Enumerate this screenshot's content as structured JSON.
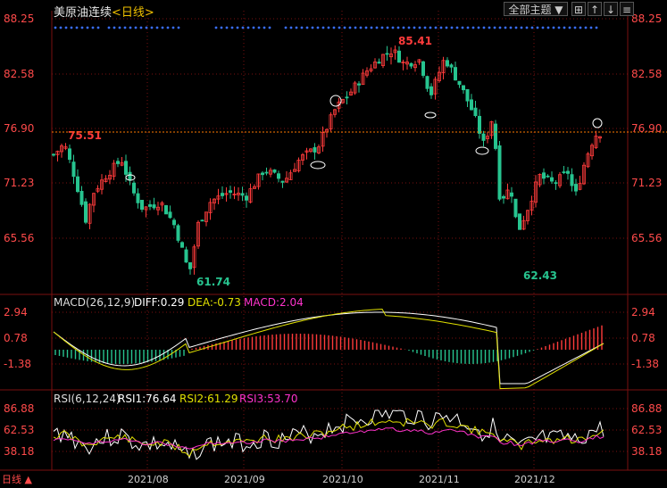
{
  "header": {
    "title": "美原油连续",
    "timeframe": "<日线>",
    "dropdown_label": "全部主题",
    "icon_buttons": [
      "expand-icon",
      "zoom-in-icon",
      "zoom-out-icon",
      "menu-icon"
    ]
  },
  "price_panel": {
    "y_ticks": [
      "88.25",
      "82.58",
      "76.90",
      "71.23",
      "65.56"
    ],
    "high_label": "85.41",
    "low_label": "61.74",
    "low2_label": "62.43",
    "ref_label": "75.51",
    "ref_line_value": 76.9
  },
  "macd_panel": {
    "label": "MACD(26,12,9)",
    "diff": "DIFF:0.29",
    "dea": "DEA:-0.73",
    "macd": "MACD:2.04",
    "y_ticks": [
      "2.94",
      "0.78",
      "-1.38"
    ]
  },
  "rsi_panel": {
    "label": "RSI(6,12,24)",
    "rsi1": "RSI1:76.64",
    "rsi2": "RSI2:61.29",
    "rsi3": "RSI3:53.70",
    "y_ticks": [
      "86.88",
      "62.53",
      "38.18"
    ]
  },
  "x_axis": {
    "ticks": [
      "2021/08",
      "2021/09",
      "2021/10",
      "2021/11",
      "2021/12"
    ],
    "left_label": "日线 ▲"
  },
  "colors": {
    "up": "#ff3b3b",
    "down": "#27c48f",
    "diff": "#ffffff",
    "dea": "#e0e000",
    "macd": "#ff33cc",
    "axis_text": "#ff4a4a",
    "grid": "#7a1010",
    "dots": "#3a6fff"
  }
}
